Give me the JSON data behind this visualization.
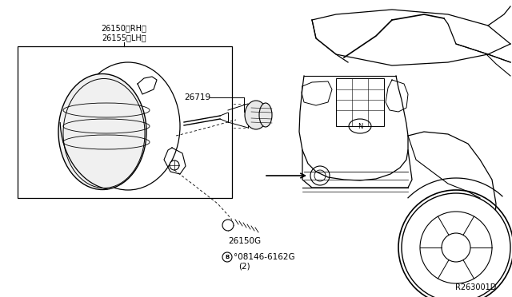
{
  "bg_color": "#ffffff",
  "line_color": "#000000",
  "fig_width": 6.4,
  "fig_height": 3.72,
  "dpi": 100,
  "labels": {
    "part_main_1": "26150〈RH〉",
    "part_main_2": "26155〈LH〉",
    "part_26719": "26719",
    "part_26150G": "26150G",
    "bolt_label": "°08146-6162G",
    "bolt_qty": "(2)",
    "ref_code": "R263001D"
  }
}
